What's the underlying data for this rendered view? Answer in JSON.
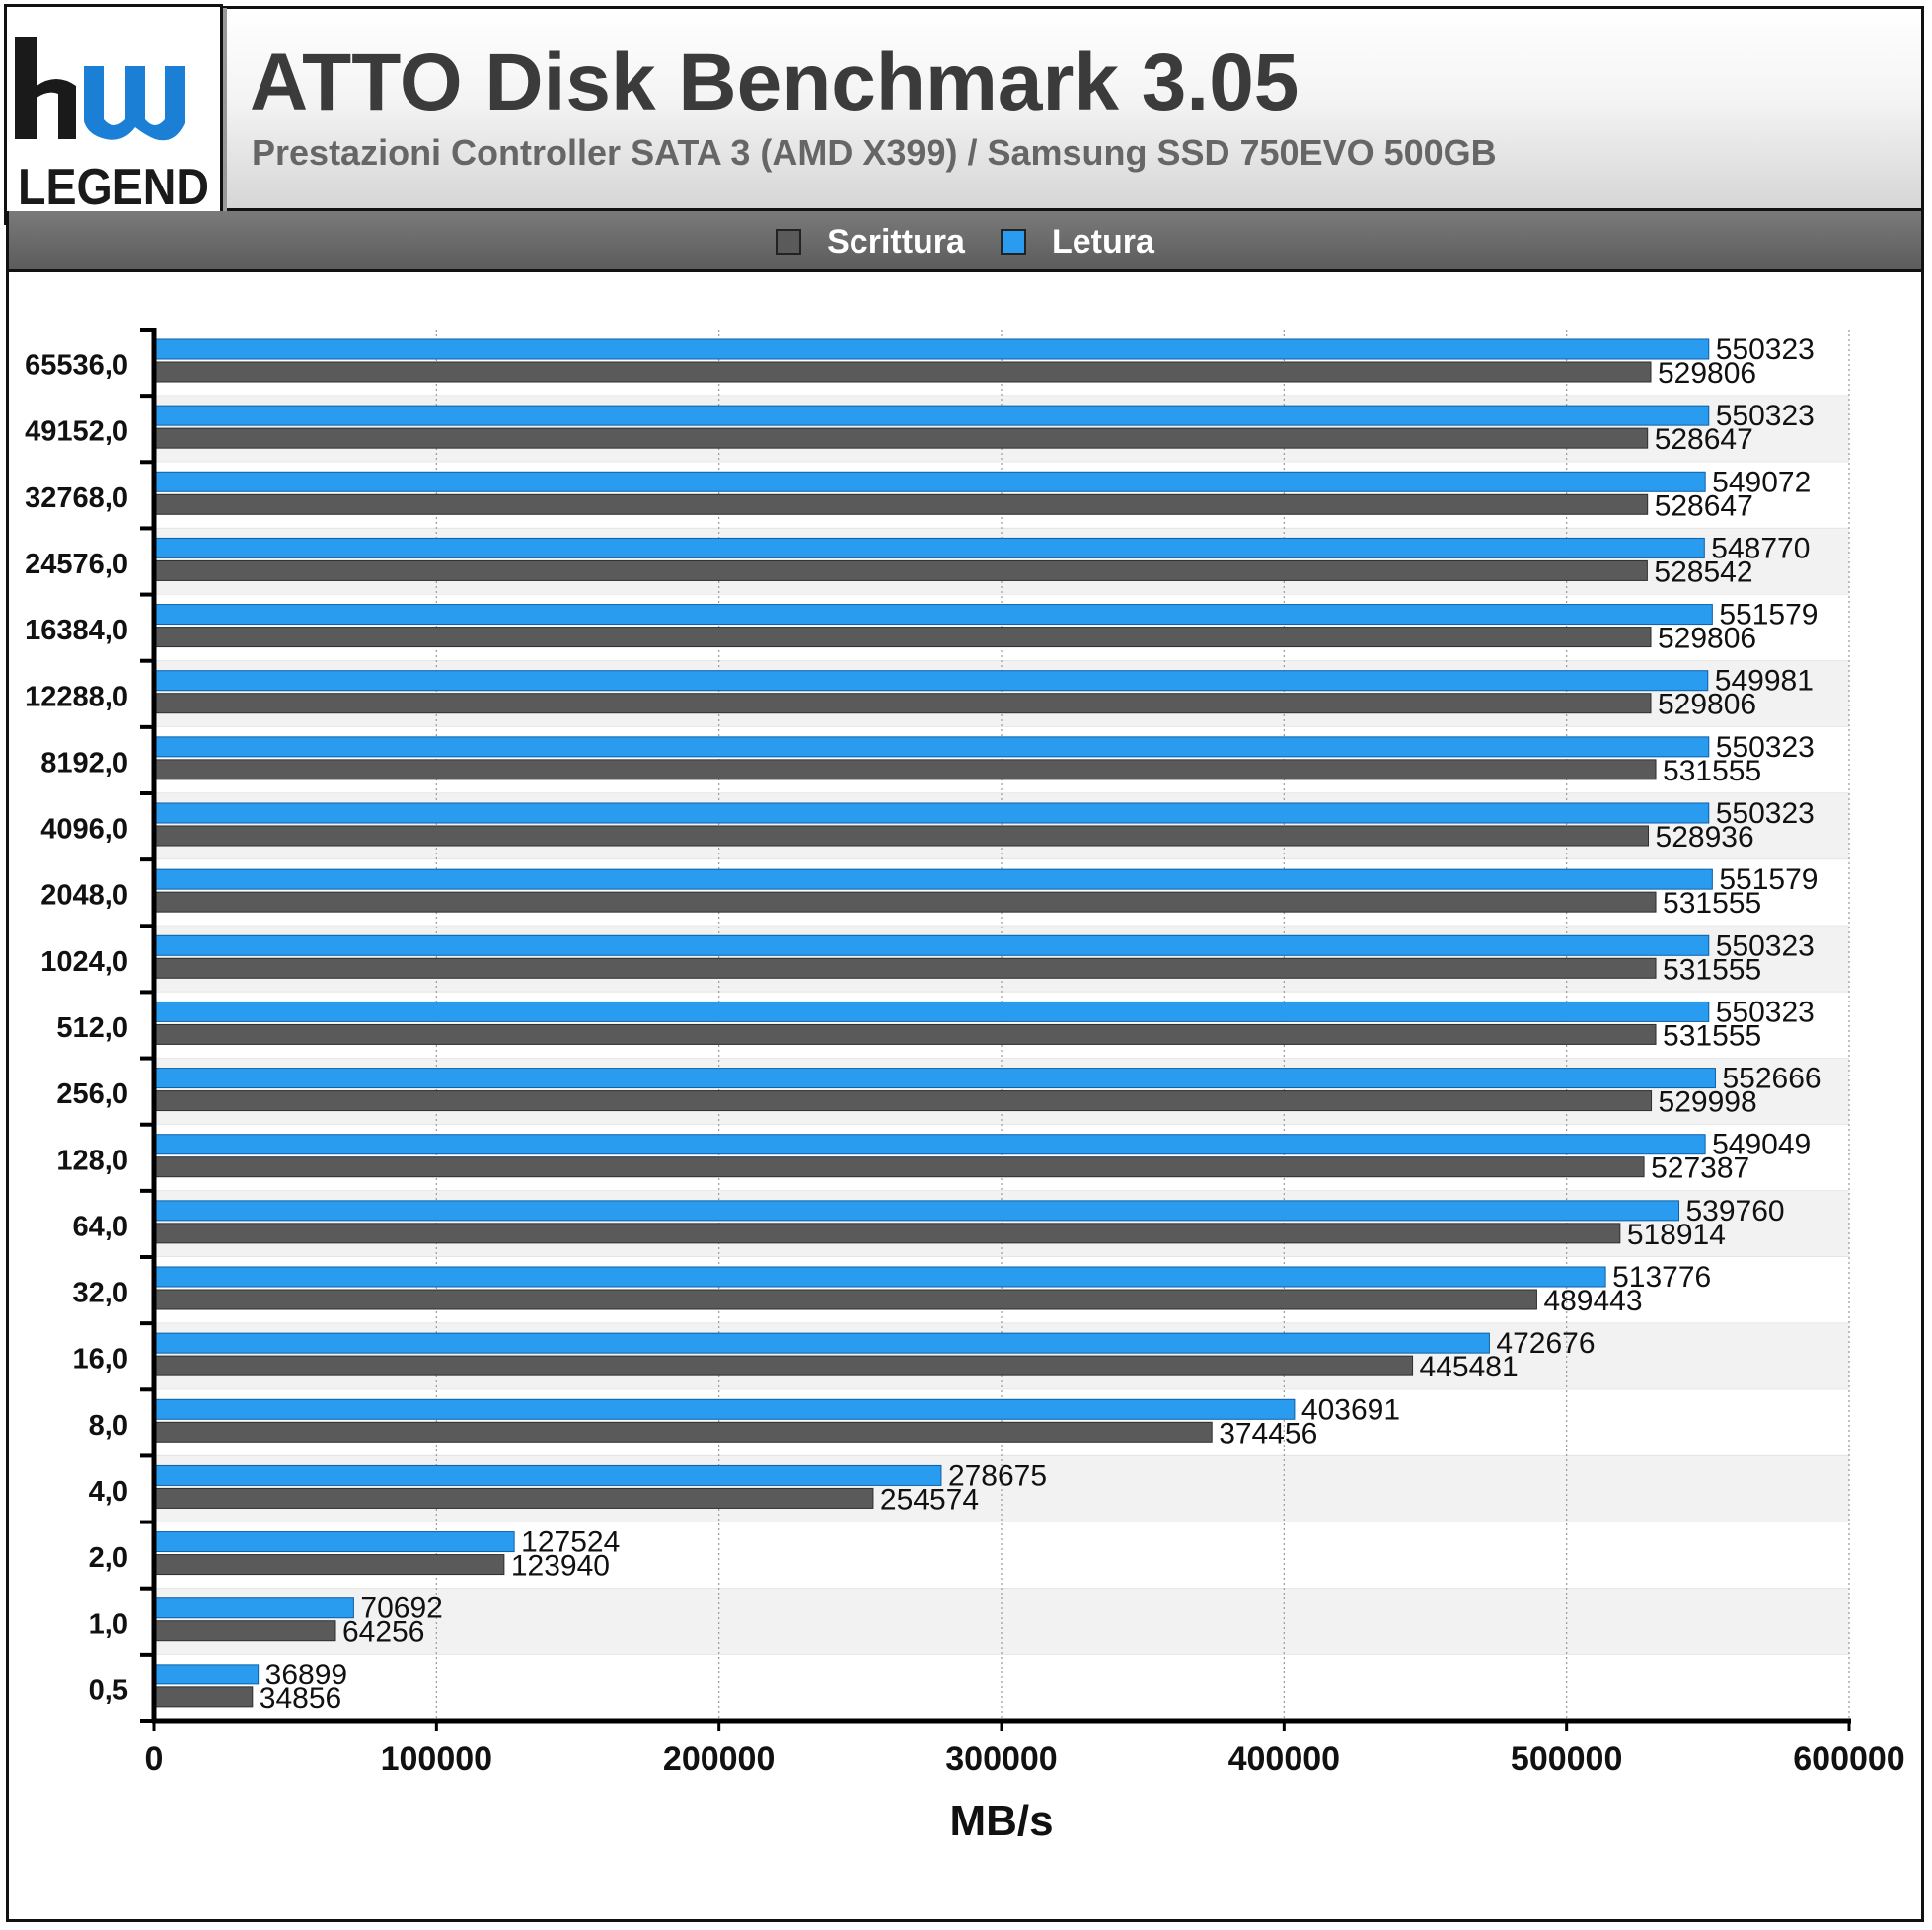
{
  "header": {
    "logo_text": "LEGEND",
    "title": "ATTO Disk Benchmark 3.05",
    "subtitle": "Prestazioni Controller SATA 3 (AMD X399) / Samsung SSD 750EVO 500GB"
  },
  "colors": {
    "scrittura": "#5a5a5a",
    "letura": "#2a9cf0",
    "logo_blue": "#1b7fd6"
  },
  "chart_data": {
    "type": "bar",
    "orientation": "horizontal",
    "title": "ATTO Disk Benchmark 3.05",
    "subtitle": "Prestazioni Controller SATA 3 (AMD X399) / Samsung SSD 750EVO 500GB",
    "xlabel": "MB/s",
    "ylabel": "",
    "xlim": [
      0,
      600000
    ],
    "xticks": [
      "0",
      "100000",
      "200000",
      "300000",
      "400000",
      "500000",
      "600000"
    ],
    "grid": "vertical dotted",
    "legend_position": "top-center",
    "categories": [
      "65536,0",
      "49152,0",
      "32768,0",
      "24576,0",
      "16384,0",
      "12288,0",
      "8192,0",
      "4096,0",
      "2048,0",
      "1024,0",
      "512,0",
      "256,0",
      "128,0",
      "64,0",
      "32,0",
      "16,0",
      "8,0",
      "4,0",
      "2,0",
      "1,0",
      "0,5"
    ],
    "series": [
      {
        "name": "Scrittura",
        "color": "#5a5a5a",
        "values": [
          529806,
          528647,
          528647,
          528542,
          529806,
          529806,
          531555,
          528936,
          531555,
          531555,
          531555,
          529998,
          527387,
          518914,
          489443,
          445481,
          374456,
          254574,
          123940,
          64256,
          34856
        ]
      },
      {
        "name": "Letura",
        "color": "#2a9cf0",
        "values": [
          550323,
          550323,
          549072,
          548770,
          551579,
          549981,
          550323,
          550323,
          551579,
          550323,
          550323,
          552666,
          549049,
          539760,
          513776,
          472676,
          403691,
          278675,
          127524,
          70692,
          36899
        ]
      }
    ]
  }
}
